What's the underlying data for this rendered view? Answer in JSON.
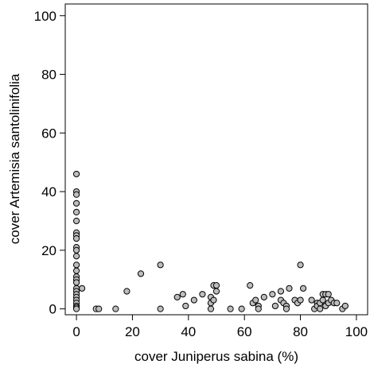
{
  "chart_data": {
    "type": "scatter",
    "title": "",
    "xlabel": "cover Juniperus sabina (%)",
    "ylabel": "cover Artemisia santolinifolia",
    "xlim": [
      -4,
      104
    ],
    "ylim": [
      -2,
      104
    ],
    "grid": false,
    "xticks": [
      0,
      20,
      40,
      60,
      80,
      100
    ],
    "yticks": [
      0,
      20,
      40,
      60,
      80,
      100
    ],
    "x_tick_labels": [
      "0",
      "20",
      "40",
      "60",
      "80",
      "100"
    ],
    "y_tick_labels": [
      "0",
      "20",
      "40",
      "60",
      "80",
      "100"
    ],
    "marker_fill": "#bdbdbd",
    "marker_edge": "#000000",
    "points": [
      [
        0,
        46
      ],
      [
        0,
        40
      ],
      [
        0,
        39
      ],
      [
        0,
        36
      ],
      [
        0,
        33
      ],
      [
        0,
        30
      ],
      [
        0,
        26
      ],
      [
        0,
        25
      ],
      [
        0,
        24
      ],
      [
        0,
        21
      ],
      [
        0,
        20
      ],
      [
        0,
        18
      ],
      [
        0,
        15
      ],
      [
        0,
        13
      ],
      [
        0,
        11
      ],
      [
        0,
        10
      ],
      [
        0,
        9
      ],
      [
        0,
        7
      ],
      [
        0,
        6
      ],
      [
        0,
        5
      ],
      [
        0,
        4
      ],
      [
        0,
        3
      ],
      [
        0,
        2
      ],
      [
        0,
        1
      ],
      [
        0,
        0.5
      ],
      [
        0,
        0
      ],
      [
        2,
        7
      ],
      [
        7,
        0
      ],
      [
        8,
        0
      ],
      [
        14,
        0
      ],
      [
        18,
        6
      ],
      [
        23,
        12
      ],
      [
        30,
        15
      ],
      [
        30,
        0
      ],
      [
        36,
        4
      ],
      [
        38,
        5
      ],
      [
        39,
        1
      ],
      [
        42,
        3
      ],
      [
        45,
        5
      ],
      [
        48,
        4
      ],
      [
        48,
        2
      ],
      [
        49,
        8
      ],
      [
        48,
        0
      ],
      [
        49,
        3
      ],
      [
        50,
        8
      ],
      [
        50,
        6
      ],
      [
        55,
        0
      ],
      [
        59,
        0
      ],
      [
        62,
        8
      ],
      [
        63,
        2
      ],
      [
        64,
        3
      ],
      [
        65,
        1
      ],
      [
        65,
        0
      ],
      [
        67,
        4
      ],
      [
        70,
        5
      ],
      [
        71,
        1
      ],
      [
        73,
        6
      ],
      [
        73,
        3
      ],
      [
        74,
        2
      ],
      [
        75,
        1
      ],
      [
        75,
        0
      ],
      [
        76,
        7
      ],
      [
        78,
        3
      ],
      [
        79,
        2
      ],
      [
        80,
        15
      ],
      [
        80,
        3
      ],
      [
        81,
        7
      ],
      [
        84,
        3
      ],
      [
        85,
        0
      ],
      [
        86,
        2
      ],
      [
        86,
        1
      ],
      [
        87,
        2
      ],
      [
        87,
        0
      ],
      [
        88,
        5
      ],
      [
        88,
        3
      ],
      [
        89,
        5
      ],
      [
        89,
        1
      ],
      [
        90,
        5
      ],
      [
        90,
        2
      ],
      [
        91,
        3
      ],
      [
        92,
        2
      ],
      [
        93,
        2
      ],
      [
        95,
        0
      ],
      [
        96,
        1
      ]
    ]
  }
}
